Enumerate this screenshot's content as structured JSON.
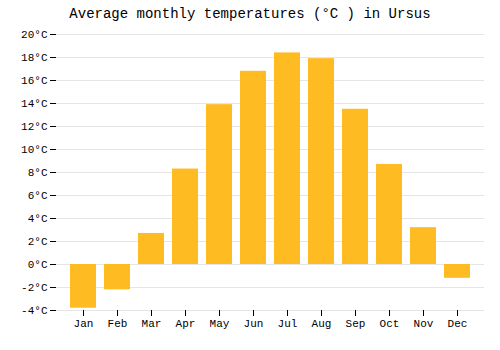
{
  "chart_data": {
    "type": "bar",
    "title": "Average monthly temperatures (°C ) in Ursus",
    "categories": [
      "Jan",
      "Feb",
      "Mar",
      "Apr",
      "May",
      "Jun",
      "Jul",
      "Aug",
      "Sep",
      "Oct",
      "Nov",
      "Dec"
    ],
    "values": [
      -3.8,
      -2.2,
      2.7,
      8.3,
      13.9,
      16.8,
      18.4,
      17.9,
      13.5,
      8.7,
      3.2,
      -1.2
    ],
    "color": "#FFBB22",
    "ylim": [
      -4,
      20
    ],
    "yticks": [
      {
        "value": -4,
        "label": "-4°C"
      },
      {
        "value": -2,
        "label": "-2°C"
      },
      {
        "value": 0,
        "label": "0°C"
      },
      {
        "value": 2,
        "label": "2°C"
      },
      {
        "value": 4,
        "label": "4°C"
      },
      {
        "value": 6,
        "label": "6°C"
      },
      {
        "value": 8,
        "label": "8°C"
      },
      {
        "value": 10,
        "label": "10°C"
      },
      {
        "value": 12,
        "label": "12°C"
      },
      {
        "value": 14,
        "label": "14°C"
      },
      {
        "value": 16,
        "label": "16°C"
      },
      {
        "value": 18,
        "label": "18°C"
      },
      {
        "value": 20,
        "label": "20°C"
      }
    ],
    "grid": true
  }
}
